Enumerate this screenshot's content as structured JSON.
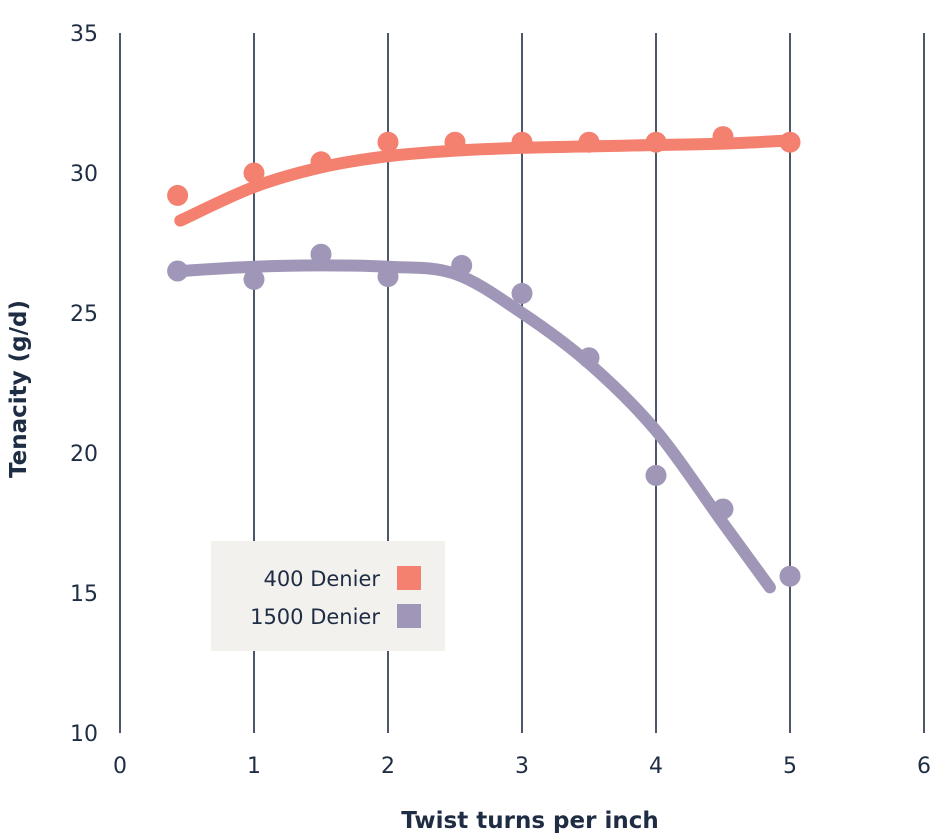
{
  "chart_data": {
    "type": "scatter",
    "xlabel": "Twist turns per inch",
    "ylabel": "Tenacity (g/d)",
    "xlim": [
      0,
      6
    ],
    "ylim": [
      10,
      35
    ],
    "xticks": [
      0,
      1,
      2,
      3,
      4,
      5,
      6
    ],
    "yticks": [
      10,
      15,
      20,
      25,
      30,
      35
    ],
    "grid": {
      "vertical": true,
      "horizontal": false
    },
    "legend_position": "lower-left",
    "series": [
      {
        "name": "400 Denier",
        "color": "#f4806f",
        "points": {
          "x": [
            0.43,
            1.0,
            1.5,
            2.0,
            2.5,
            3.0,
            3.5,
            4.0,
            4.5,
            5.0
          ],
          "y": [
            29.2,
            30.0,
            30.4,
            31.1,
            31.1,
            31.1,
            31.1,
            31.1,
            31.3,
            31.1
          ]
        },
        "trend": {
          "x": [
            0.45,
            1.0,
            1.5,
            2.0,
            2.5,
            3.0,
            3.5,
            4.0,
            4.5,
            4.95
          ],
          "y": [
            28.3,
            29.5,
            30.2,
            30.6,
            30.8,
            30.9,
            30.95,
            31.0,
            31.05,
            31.15
          ]
        }
      },
      {
        "name": "1500 Denier",
        "color": "#a097b8",
        "points": {
          "x": [
            0.43,
            1.0,
            1.5,
            2.0,
            2.55,
            3.0,
            3.5,
            4.0,
            4.5,
            5.0
          ],
          "y": [
            26.5,
            26.2,
            27.1,
            26.3,
            26.7,
            25.7,
            23.4,
            19.2,
            18.0,
            15.6
          ]
        },
        "trend": {
          "x": [
            0.45,
            1.0,
            1.5,
            2.0,
            2.5,
            3.0,
            3.5,
            4.0,
            4.5,
            4.85
          ],
          "y": [
            26.5,
            26.65,
            26.7,
            26.65,
            26.4,
            25.0,
            23.2,
            20.8,
            17.5,
            15.2
          ]
        }
      }
    ]
  }
}
